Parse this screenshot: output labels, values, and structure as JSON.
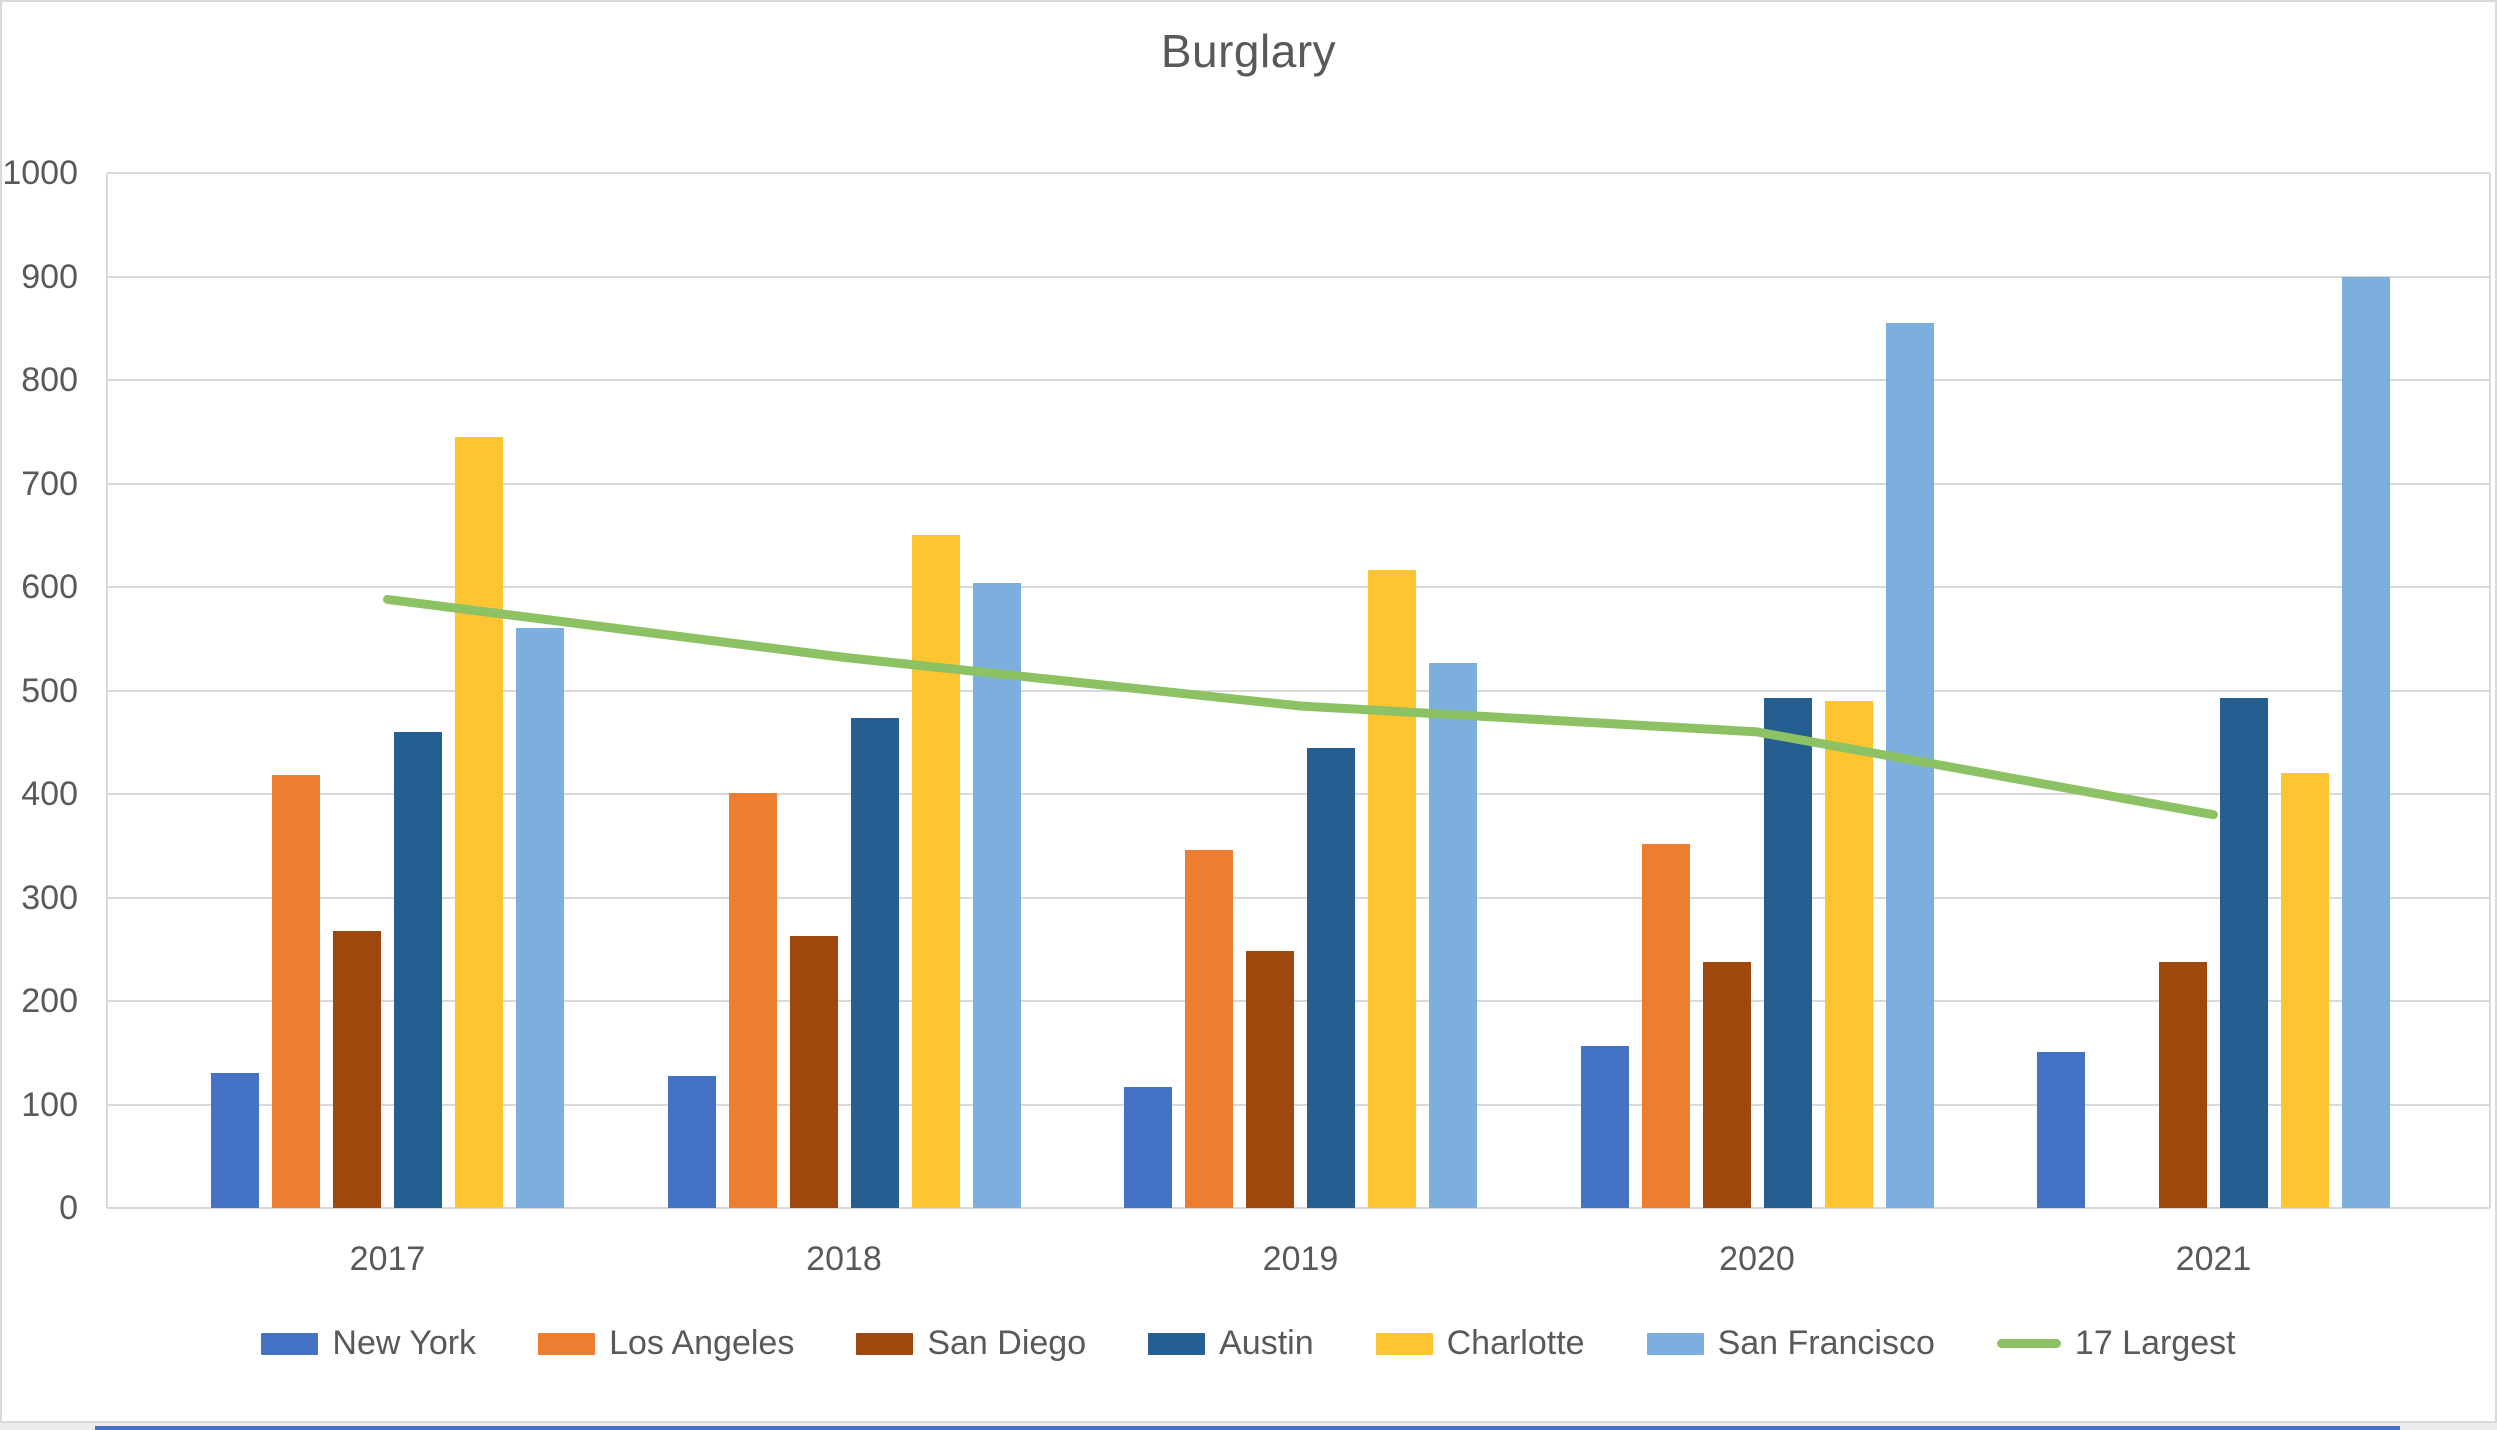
{
  "chart_data": {
    "type": "bar",
    "title": "Burglary",
    "categories": [
      "2017",
      "2018",
      "2019",
      "2020",
      "2021"
    ],
    "series": [
      {
        "name": "New York",
        "type": "bar",
        "color": "#4472C4",
        "values": [
          130,
          128,
          117,
          157,
          151
        ]
      },
      {
        "name": "Los Angeles",
        "type": "bar",
        "color": "#ED7D31",
        "values": [
          418,
          401,
          346,
          352,
          null
        ]
      },
      {
        "name": "San Diego",
        "type": "bar",
        "color": "#9E480E",
        "values": [
          268,
          263,
          248,
          238,
          238
        ]
      },
      {
        "name": "Austin",
        "type": "bar",
        "color": "#255E91",
        "values": [
          460,
          473,
          444,
          493,
          493
        ]
      },
      {
        "name": "Charlotte",
        "type": "bar",
        "color": "#FFC432",
        "values": [
          745,
          650,
          616,
          490,
          420
        ]
      },
      {
        "name": "San Francisco",
        "type": "bar",
        "color": "#7CAFDD",
        "values": [
          560,
          604,
          527,
          855,
          900
        ]
      },
      {
        "name": "17 Largest",
        "type": "line",
        "color": "#8CC164",
        "values": [
          588,
          532,
          485,
          460,
          380
        ]
      }
    ],
    "xlabel": "",
    "ylabel": "",
    "ylim": [
      0,
      1000
    ],
    "y_ticks": [
      "0",
      "100",
      "200",
      "300",
      "400",
      "500",
      "600",
      "700",
      "800",
      "900",
      "1000"
    ],
    "grid": true,
    "legend_position": "bottom"
  },
  "page": {
    "text_color": "#595959",
    "gridline_color": "#D9D9D9",
    "background_color": "#FFFFFF",
    "bottom_strip_color": "#4472C4"
  }
}
